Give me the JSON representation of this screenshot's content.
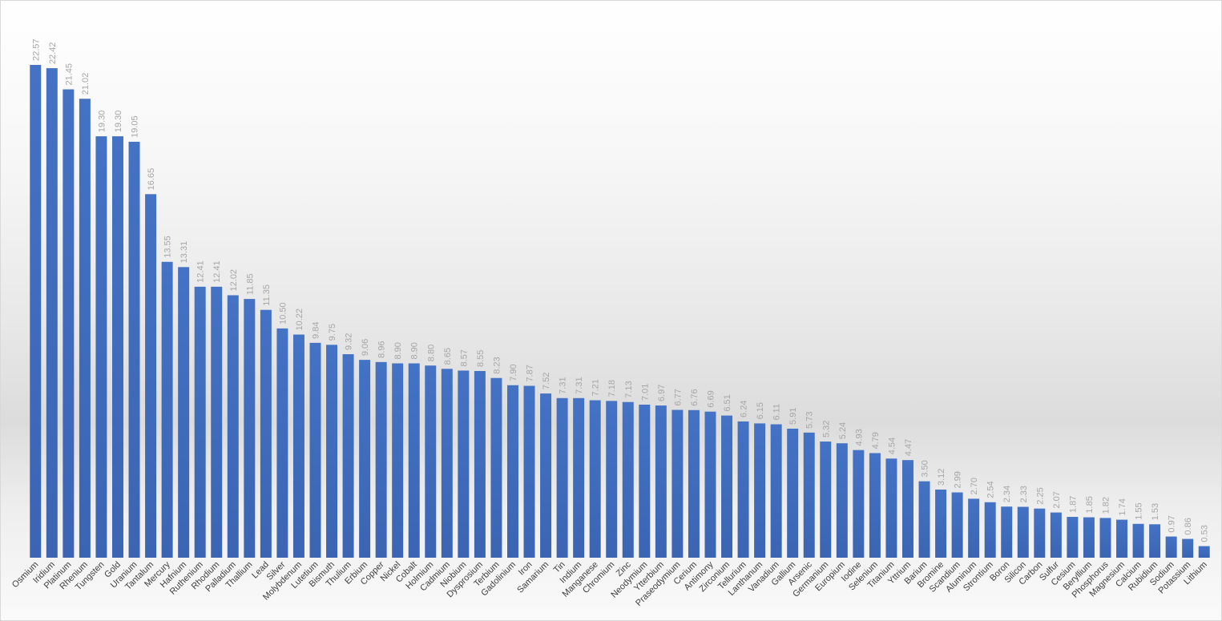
{
  "chart_data": {
    "type": "bar",
    "title": "",
    "xlabel": "",
    "ylabel": "",
    "ylim": [
      0,
      22.57
    ],
    "grid": false,
    "legend": "none",
    "bar_color": "#4472C4",
    "label_color": "#A6A6A6",
    "categories": [
      "Osmium",
      "Iridium",
      "Platinum",
      "Rhenium",
      "Tungsten",
      "Gold",
      "Uranium",
      "Tantalum",
      "Mercury",
      "Hafnium",
      "Ruthenium",
      "Rhodium",
      "Palladium",
      "Thallium",
      "Lead",
      "Silver",
      "Molybdenum",
      "Lutetium",
      "Bismuth",
      "Thulium",
      "Erbium",
      "Copper",
      "Nickel",
      "Cobalt",
      "Holmium",
      "Cadmium",
      "Niobium",
      "Dysprosium",
      "Terbium",
      "Gadolinium",
      "Iron",
      "Samarium",
      "Tin",
      "Indium",
      "Manganese",
      "Chromium",
      "Zinc",
      "Neodymium",
      "Ytterbium",
      "Praseodymium",
      "Cerium",
      "Antimony",
      "Zirconium",
      "Tellurium",
      "Lanthanum",
      "Vanadium",
      "Gallium",
      "Arsenic",
      "Germanium",
      "Europium",
      "Iodine",
      "Selenium",
      "Titanium",
      "Yttrium",
      "Barium",
      "Bromine",
      "Scandium",
      "Aluminum",
      "Strontium",
      "Boron",
      "Silicon",
      "Carbon",
      "Sulfur",
      "Cesium",
      "Beryllium",
      "Phosphorus",
      "Magnesium",
      "Calcium",
      "Rubidium",
      "Sodium",
      "Potassium",
      "Lithium"
    ],
    "values": [
      22.57,
      22.42,
      21.45,
      21.02,
      19.3,
      19.3,
      19.05,
      16.65,
      13.55,
      13.31,
      12.41,
      12.41,
      12.02,
      11.85,
      11.35,
      10.5,
      10.22,
      9.84,
      9.75,
      9.32,
      9.06,
      8.96,
      8.9,
      8.9,
      8.8,
      8.65,
      8.57,
      8.55,
      8.23,
      7.9,
      7.87,
      7.52,
      7.31,
      7.31,
      7.21,
      7.18,
      7.13,
      7.01,
      6.97,
      6.77,
      6.76,
      6.69,
      6.51,
      6.24,
      6.15,
      6.11,
      5.91,
      5.73,
      5.32,
      5.24,
      4.93,
      4.79,
      4.54,
      4.47,
      3.5,
      3.12,
      2.99,
      2.7,
      2.54,
      2.34,
      2.33,
      2.25,
      2.07,
      1.87,
      1.85,
      1.82,
      1.74,
      1.55,
      1.53,
      0.97,
      0.86,
      0.53
    ],
    "labels": [
      "22.57",
      "22.42",
      "21.45",
      "21.02",
      "19.30",
      "19.30",
      "19.05",
      "16.65",
      "13.55",
      "13.31",
      "12.41",
      "12.41",
      "12.02",
      "11.85",
      "11.35",
      "10.50",
      "10.22",
      "9.84",
      "9.75",
      "9.32",
      "9.06",
      "8.96",
      "8.90",
      "8.90",
      "8.80",
      "8.65",
      "8.57",
      "8.55",
      "8.23",
      "7.90",
      "7.87",
      "7.52",
      "7.31",
      "7.31",
      "7.21",
      "7.18",
      "7.13",
      "7.01",
      "6.97",
      "6.77",
      "6.76",
      "6.69",
      "6.51",
      "6.24",
      "6.15",
      "6.11",
      "5.91",
      "5.73",
      "5.32",
      "5.24",
      "4.93",
      "4.79",
      "4.54",
      "4.47",
      "3.50",
      "3.12",
      "2.99",
      "2.70",
      "2.54",
      "2.34",
      "2.33",
      "2.25",
      "2.07",
      "1.87",
      "1.85",
      "1.82",
      "1.74",
      "1.55",
      "1.53",
      "0.97",
      "0.86",
      "0.53"
    ]
  }
}
